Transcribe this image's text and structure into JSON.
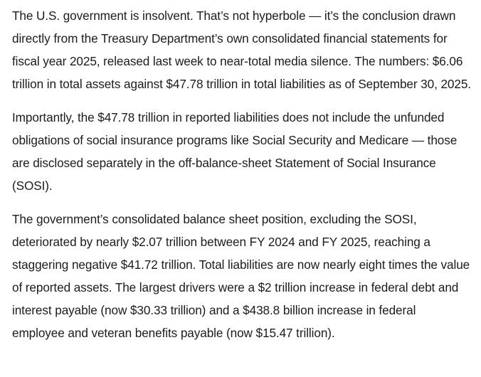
{
  "article": {
    "paragraphs": [
      "The U.S. government is insolvent. That’s not hyperbole — it’s the conclusion drawn directly from the Treasury Department’s own consolidated financial statements for fiscal year 2025, released last week to near-total media silence. The numbers: $6.06 trillion in total assets against $47.78 trillion in total liabilities as of September 30, 2025.",
      "Importantly, the $47.78 trillion in reported liabilities does not include the unfunded obligations of social insurance programs like Social Security and Medicare — those are disclosed separately in the off-balance-sheet Statement of Social Insurance (SOSI).",
      "The government’s consolidated balance sheet position, excluding the SOSI, deteriorated by nearly $2.07 trillion between FY 2024 and FY 2025, reaching a staggering negative $41.72 trillion. Total liabilities are now nearly eight times the value of reported assets. The largest drivers were a $2 trillion increase in federal debt and interest payable (now $30.33 trillion) and a $438.8 billion increase in federal employee and veteran benefits payable (now $15.47 trillion)."
    ]
  }
}
